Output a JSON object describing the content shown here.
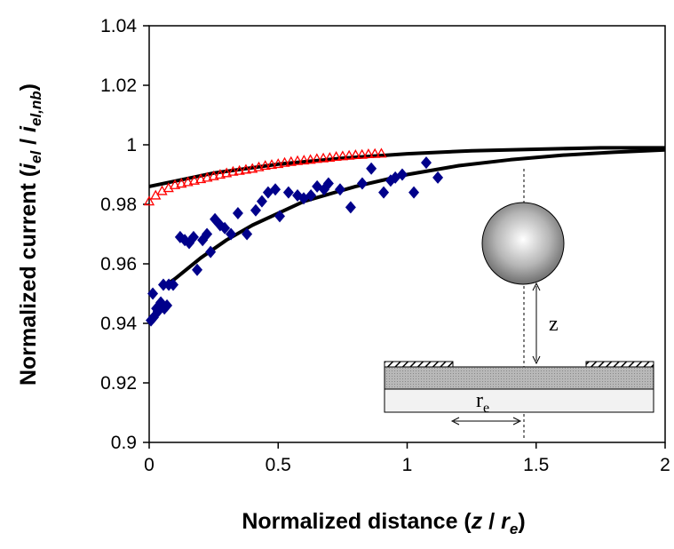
{
  "chart_data": {
    "type": "scatter",
    "ylabel": {
      "main": "Normalized current (",
      "var1": "i",
      "sub1": "el",
      "sep": " / ",
      "var2": "i",
      "sub2": "el,nb",
      "close": ")"
    },
    "xlabel": {
      "main": "Normalized distance (",
      "var1": "z",
      "sep": " / ",
      "var2": "r",
      "sub2": "e",
      "close": ")"
    },
    "inset_labels": {
      "z": "z",
      "r": "r",
      "r_sub": "e"
    },
    "xlim": [
      0,
      2
    ],
    "xticks": [
      0,
      0.5,
      1,
      1.5,
      2
    ],
    "ylim": [
      0.9,
      1.04
    ],
    "yticks": [
      0.9,
      0.92,
      0.94,
      0.96,
      0.98,
      1,
      1.02,
      1.04
    ],
    "series": [
      {
        "marker": "diamond",
        "color": "#00008b",
        "x": [
          0.007,
          0.017,
          0.028,
          0.014,
          0.034,
          0.045,
          0.059,
          0.055,
          0.069,
          0.076,
          0.093,
          0.12,
          0.138,
          0.155,
          0.172,
          0.186,
          0.207,
          0.224,
          0.238,
          0.255,
          0.275,
          0.293,
          0.317,
          0.344,
          0.379,
          0.413,
          0.437,
          0.461,
          0.489,
          0.506,
          0.54,
          0.575,
          0.599,
          0.627,
          0.651,
          0.678,
          0.695,
          0.74,
          0.781,
          0.826,
          0.861,
          0.909,
          0.936,
          0.954,
          0.981,
          1.026,
          1.074,
          1.119
        ],
        "values": [
          0.941,
          0.942,
          0.945,
          0.95,
          0.944,
          0.947,
          0.945,
          0.953,
          0.946,
          0.953,
          0.953,
          0.969,
          0.968,
          0.967,
          0.969,
          0.958,
          0.968,
          0.97,
          0.964,
          0.975,
          0.973,
          0.972,
          0.97,
          0.977,
          0.97,
          0.978,
          0.981,
          0.984,
          0.985,
          0.976,
          0.984,
          0.983,
          0.982,
          0.983,
          0.986,
          0.985,
          0.987,
          0.985,
          0.979,
          0.987,
          0.992,
          0.984,
          0.988,
          0.989,
          0.99,
          0.984,
          0.994,
          0.989
        ]
      },
      {
        "marker": "triangle",
        "color": "#ff0000",
        "x": [
          0,
          0.025,
          0.05,
          0.075,
          0.1,
          0.125,
          0.15,
          0.175,
          0.2,
          0.225,
          0.25,
          0.275,
          0.3,
          0.325,
          0.35,
          0.375,
          0.4,
          0.425,
          0.45,
          0.475,
          0.5,
          0.525,
          0.55,
          0.575,
          0.6,
          0.625,
          0.65,
          0.675,
          0.7,
          0.725,
          0.75,
          0.775,
          0.8,
          0.825,
          0.85,
          0.875,
          0.9
        ],
        "values": [
          0.981,
          0.983,
          0.9845,
          0.9855,
          0.9865,
          0.987,
          0.9875,
          0.988,
          0.9885,
          0.989,
          0.9895,
          0.99,
          0.9905,
          0.991,
          0.9913,
          0.9917,
          0.992,
          0.9925,
          0.993,
          0.9933,
          0.9936,
          0.994,
          0.9943,
          0.9946,
          0.9948,
          0.995,
          0.9953,
          0.9955,
          0.9957,
          0.996,
          0.9962,
          0.9964,
          0.9966,
          0.9967,
          0.9969,
          0.997,
          0.9971
        ]
      },
      {
        "marker": "line",
        "color": "#000000",
        "x": [
          0,
          0.25,
          0.5,
          0.75,
          1,
          1.25,
          1.5,
          1.75,
          2
        ],
        "values": [
          0.986,
          0.9905,
          0.9935,
          0.9955,
          0.997,
          0.998,
          0.9985,
          0.999,
          0.999
        ]
      },
      {
        "marker": "line",
        "color": "#000000",
        "x": [
          0.05,
          0.1,
          0.2,
          0.3,
          0.4,
          0.5,
          0.6,
          0.8,
          1,
          1.2,
          1.4,
          1.6,
          1.8,
          2
        ],
        "values": [
          0.952,
          0.955,
          0.962,
          0.968,
          0.973,
          0.977,
          0.981,
          0.986,
          0.99,
          0.993,
          0.995,
          0.9965,
          0.9975,
          0.9983
        ]
      }
    ]
  }
}
